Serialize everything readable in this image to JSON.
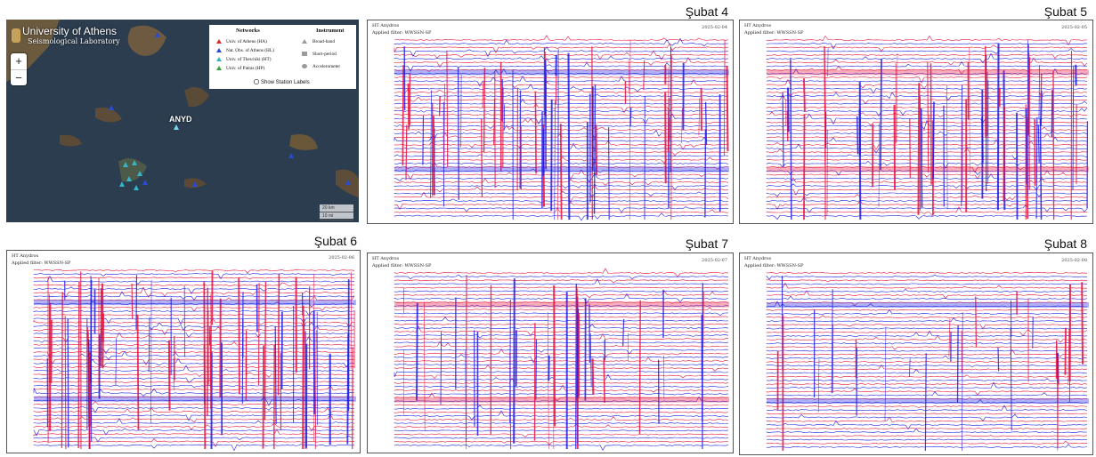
{
  "panels": [
    {
      "title": "",
      "station": "",
      "filter": "",
      "date": ""
    },
    {
      "title": "Şubat 4",
      "station": "HT Anydros",
      "filter": "Applied filter: WWSSN-SP",
      "date": "2025-02-04"
    },
    {
      "title": "Şubat 5",
      "station": "HT Anydros",
      "filter": "Applied filter: WWSSN-SP",
      "date": "2025-02-05"
    },
    {
      "title": "Şubat 6",
      "station": "HT Anydros",
      "filter": "Applied filter: WWSSN-SP",
      "date": "2025-02-06"
    },
    {
      "title": "Şubat 7",
      "station": "HT Anydros",
      "filter": "Applied filter: WWSSN-SP",
      "date": "2025-02-07"
    },
    {
      "title": "Şubat 8",
      "station": "HT Anydros",
      "filter": "Applied filter: WWSSN-SP",
      "date": "2025-02-08"
    }
  ],
  "map": {
    "brand": "University of Athens",
    "brand_sub": "Seismological Laboratory",
    "zoom_in": "+",
    "zoom_out": "−",
    "station_label": "ANYD",
    "legend": {
      "networks_header": "Networks",
      "instrument_header": "Instrument",
      "networks": [
        {
          "label": "Univ. of Athens (HA)",
          "color": "#d62b2b"
        },
        {
          "label": "Nat. Obs. of Athens (HL)",
          "color": "#2a4bd1"
        },
        {
          "label": "Univ. of Thes/niki (HT)",
          "color": "#34b6c7"
        },
        {
          "label": "Univ. of Patras (HP)",
          "color": "#3aa63a"
        }
      ],
      "instruments": [
        "Broad-band",
        "Short-period",
        "Accelerometer"
      ],
      "show_labels": "Show Station Labels"
    },
    "scale": [
      "20 km",
      "10 mi"
    ]
  },
  "colors": {
    "trace_red": "#e8123c",
    "trace_blue": "#1f1fe6",
    "sea": "#2b3d4f"
  }
}
